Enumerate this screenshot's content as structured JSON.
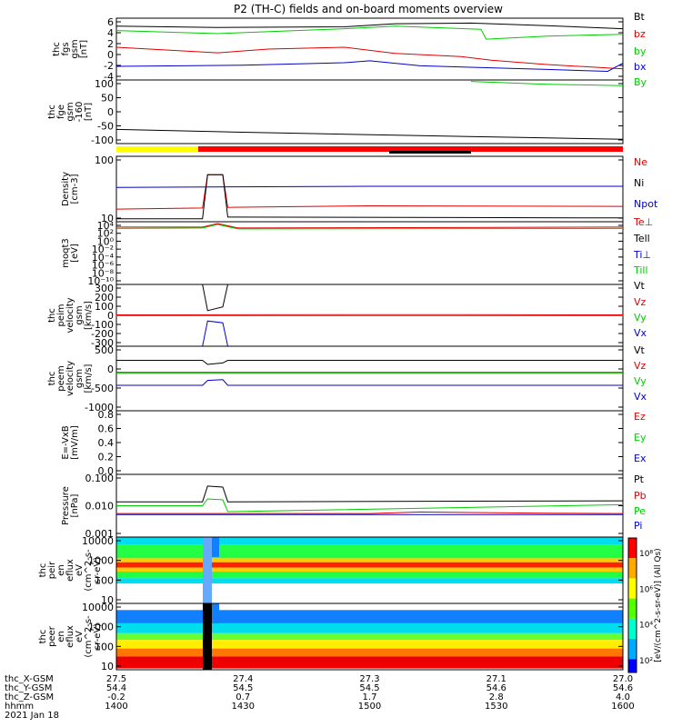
{
  "title": "P2 (TH-C) fields and on-board moments overview",
  "colors": {
    "black": "#000000",
    "red": "#e00000",
    "green": "#00cc00",
    "blue": "#0000cc",
    "yellow": "#ffff00",
    "orbit_red": "#ff0000"
  },
  "chart_data": [
    {
      "type": "line",
      "ylabel": [
        "thc",
        "fgs",
        "gsm",
        "[nT]"
      ],
      "yticks": [
        "6",
        "4",
        "2",
        "0",
        "-2",
        "-4"
      ],
      "ylim": [
        -4,
        6
      ],
      "legend": [
        {
          "label": "Bt",
          "color": "black"
        },
        {
          "label": "bz",
          "color": "red"
        },
        {
          "label": "by",
          "color": "green"
        },
        {
          "label": "bx",
          "color": "blue"
        }
      ],
      "series": [
        {
          "name": "Bt",
          "color": "black",
          "points": [
            [
              0,
              4.7
            ],
            [
              0.2,
              4.5
            ],
            [
              0.45,
              4.6
            ],
            [
              0.55,
              5.1
            ],
            [
              0.7,
              5.2
            ],
            [
              0.85,
              4.8
            ],
            [
              1,
              4.3
            ]
          ]
        },
        {
          "name": "by",
          "color": "green",
          "points": [
            [
              0,
              4.0
            ],
            [
              0.2,
              3.5
            ],
            [
              0.45,
              4.3
            ],
            [
              0.55,
              4.7
            ],
            [
              0.72,
              4.2
            ],
            [
              0.73,
              2.6
            ],
            [
              0.85,
              3.1
            ],
            [
              1,
              3.4
            ]
          ]
        },
        {
          "name": "bz",
          "color": "red",
          "points": [
            [
              0,
              1.3
            ],
            [
              0.2,
              0.4
            ],
            [
              0.3,
              1.0
            ],
            [
              0.45,
              1.3
            ],
            [
              0.55,
              0.3
            ],
            [
              0.68,
              -0.2
            ],
            [
              0.74,
              -0.8
            ],
            [
              0.85,
              -1.5
            ],
            [
              1,
              -2.2
            ]
          ]
        },
        {
          "name": "bx",
          "color": "blue",
          "points": [
            [
              0,
              -1.8
            ],
            [
              0.25,
              -1.6
            ],
            [
              0.45,
              -1.2
            ],
            [
              0.5,
              -0.9
            ],
            [
              0.6,
              -1.7
            ],
            [
              0.85,
              -2.3
            ],
            [
              0.97,
              -2.6
            ],
            [
              1,
              -1.3
            ]
          ]
        }
      ]
    },
    {
      "type": "line",
      "ylabel": [
        "thc",
        "fge",
        "gsm",
        "-160",
        "[nT]"
      ],
      "yticks": [
        "100",
        "50",
        "0",
        "-50",
        "-100"
      ],
      "ylim": [
        -120,
        105
      ],
      "legend": [
        {
          "label": "By",
          "color": "green"
        }
      ],
      "series": [
        {
          "name": "black",
          "color": "black",
          "points": [
            [
              0,
              -70
            ],
            [
              0.2,
              -78
            ],
            [
              0.4,
              -85
            ],
            [
              0.6,
              -92
            ],
            [
              0.8,
              -98
            ],
            [
              1,
              -105
            ]
          ]
        },
        {
          "name": "By",
          "color": "green",
          "points": [
            [
              0.7,
              100
            ],
            [
              0.85,
              90
            ],
            [
              1,
              85
            ]
          ]
        }
      ]
    },
    {
      "type": "line",
      "ylabel": [
        "Density",
        "[cm-3]"
      ],
      "yticks": [
        "100",
        "10"
      ],
      "scale": "log",
      "ylim": [
        1,
        300
      ],
      "legend": [
        {
          "label": "Ne",
          "color": "red"
        },
        {
          "label": "Ni",
          "color": "black"
        },
        {
          "label": "Npot",
          "color": "blue"
        }
      ],
      "series": [
        {
          "name": "Npot",
          "color": "blue",
          "points": [
            [
              0,
              20
            ],
            [
              0.5,
              22
            ],
            [
              1,
              22
            ]
          ]
        },
        {
          "name": "Ne",
          "color": "red",
          "points": [
            [
              0,
              3
            ],
            [
              0.17,
              3.3
            ],
            [
              0.18,
              60
            ],
            [
              0.21,
              60
            ],
            [
              0.22,
              3.5
            ],
            [
              0.5,
              4
            ],
            [
              1,
              3.8
            ]
          ]
        },
        {
          "name": "Ni",
          "color": "black",
          "points": [
            [
              0,
              1.3
            ],
            [
              0.17,
              1.3
            ],
            [
              0.18,
              60
            ],
            [
              0.21,
              60
            ],
            [
              0.22,
              1.5
            ],
            [
              1,
              1.4
            ]
          ]
        }
      ]
    },
    {
      "type": "line",
      "ylabel": [
        "moqt3",
        "[eV]"
      ],
      "yticks": [
        "10⁴",
        "10²",
        "10⁰",
        "10⁻²",
        "10⁻⁴",
        "10⁻⁶",
        "10⁻⁸",
        "10⁻¹⁰"
      ],
      "scale": "log",
      "ylim": [
        -10,
        4
      ],
      "legend": [
        {
          "label": "Te⊥",
          "color": "red"
        },
        {
          "label": "Tell",
          "color": "black"
        },
        {
          "label": "Ti⊥",
          "color": "blue"
        },
        {
          "label": "Till",
          "color": "green"
        }
      ],
      "series": [
        {
          "name": "Ti",
          "color": "green",
          "points": [
            [
              0,
              2.5
            ],
            [
              0.17,
              2.6
            ],
            [
              0.2,
              3.4
            ],
            [
              0.24,
              2.4
            ],
            [
              1,
              2.5
            ]
          ]
        },
        {
          "name": "Te",
          "color": "red",
          "points": [
            [
              0,
              2.8
            ],
            [
              0.17,
              2.8
            ],
            [
              0.2,
              3.6
            ],
            [
              0.24,
              2.6
            ],
            [
              1,
              2.8
            ]
          ]
        }
      ]
    },
    {
      "type": "line",
      "ylabel": [
        "thc",
        "peim",
        "velocity",
        "gsm",
        "[km/s]"
      ],
      "yticks": [
        "300",
        "200",
        "100",
        "0",
        "-100",
        "-200",
        "-300"
      ],
      "ylim": [
        -330,
        330
      ],
      "legend": [
        {
          "label": "Vt",
          "color": "black"
        },
        {
          "label": "Vz",
          "color": "red"
        },
        {
          "label": "Vy",
          "color": "green"
        },
        {
          "label": "Vx",
          "color": "blue"
        }
      ],
      "series": [
        {
          "name": "Vt",
          "color": "black",
          "points": [
            [
              0,
              330
            ],
            [
              0.17,
              330
            ],
            [
              0.18,
              50
            ],
            [
              0.21,
              90
            ],
            [
              0.22,
              330
            ],
            [
              1,
              330
            ]
          ]
        },
        {
          "name": "Vz",
          "color": "red",
          "points": [
            [
              0,
              5
            ],
            [
              0.5,
              8
            ],
            [
              1,
              5
            ]
          ]
        },
        {
          "name": "Vy",
          "color": "green",
          "points": [
            [
              0,
              -5
            ],
            [
              0.5,
              -5
            ],
            [
              1,
              -5
            ]
          ]
        },
        {
          "name": "Vx",
          "color": "blue",
          "points": [
            [
              0,
              -330
            ],
            [
              0.17,
              -330
            ],
            [
              0.18,
              -60
            ],
            [
              0.21,
              -80
            ],
            [
              0.22,
              -330
            ],
            [
              1,
              -330
            ]
          ]
        }
      ]
    },
    {
      "type": "line",
      "ylabel": [
        "thc",
        "peem",
        "velocity",
        "gsm",
        "[km/s]"
      ],
      "yticks": [
        "500",
        "0",
        "-500",
        "-1000"
      ],
      "ylim": [
        -1000,
        700
      ],
      "legend": [
        {
          "label": "Vt",
          "color": "black"
        },
        {
          "label": "Vz",
          "color": "red"
        },
        {
          "label": "Vy",
          "color": "green"
        },
        {
          "label": "Vx",
          "color": "blue"
        }
      ],
      "series": [
        {
          "name": "Vt",
          "color": "black",
          "points": [
            [
              0,
              330
            ],
            [
              0.17,
              330
            ],
            [
              0.18,
              220
            ],
            [
              0.21,
              260
            ],
            [
              0.22,
              330
            ],
            [
              1,
              330
            ]
          ]
        },
        {
          "name": "Vz",
          "color": "red",
          "points": [
            [
              0,
              10
            ],
            [
              1,
              10
            ]
          ]
        },
        {
          "name": "Vy",
          "color": "green",
          "points": [
            [
              0,
              -10
            ],
            [
              1,
              -10
            ]
          ]
        },
        {
          "name": "Vx",
          "color": "blue",
          "points": [
            [
              0,
              -330
            ],
            [
              0.17,
              -330
            ],
            [
              0.18,
              -200
            ],
            [
              0.21,
              -180
            ],
            [
              0.22,
              -330
            ],
            [
              1,
              -330
            ]
          ]
        }
      ]
    },
    {
      "type": "line",
      "ylabel": [
        "E=-VxB",
        "[mV/m]"
      ],
      "yticks": [
        "0.8",
        "0.6",
        "0.4",
        "0.2",
        "0.0"
      ],
      "ylim": [
        0,
        1
      ],
      "legend": [
        {
          "label": "Ez",
          "color": "red"
        },
        {
          "label": "Ey",
          "color": "green"
        },
        {
          "label": "Ex",
          "color": "blue"
        }
      ],
      "series": []
    },
    {
      "type": "line",
      "ylabel": [
        "Pressure",
        "[nPa]"
      ],
      "yticks": [
        "0.100",
        "0.010",
        "0.001"
      ],
      "scale": "log",
      "ylim": [
        -3.2,
        0
      ],
      "legend": [
        {
          "label": "Pt",
          "color": "black"
        },
        {
          "label": "Pb",
          "color": "red"
        },
        {
          "label": "Pe",
          "color": "green"
        },
        {
          "label": "Pi",
          "color": "blue"
        }
      ],
      "series": [
        {
          "name": "Pt",
          "color": "black",
          "points": [
            [
              0,
              -1.4
            ],
            [
              0.17,
              -1.4
            ],
            [
              0.18,
              -0.6
            ],
            [
              0.21,
              -0.65
            ],
            [
              0.22,
              -1.4
            ],
            [
              1,
              -1.35
            ]
          ]
        },
        {
          "name": "Pe",
          "color": "green",
          "points": [
            [
              0,
              -1.6
            ],
            [
              0.17,
              -1.6
            ],
            [
              0.18,
              -1.25
            ],
            [
              0.21,
              -1.3
            ],
            [
              0.22,
              -1.9
            ],
            [
              1,
              -1.55
            ]
          ]
        },
        {
          "name": "Pb",
          "color": "red",
          "points": [
            [
              0,
              -2.0
            ],
            [
              0.2,
              -2.0
            ],
            [
              0.5,
              -2.0
            ],
            [
              0.6,
              -1.92
            ],
            [
              0.85,
              -1.98
            ],
            [
              1,
              -2.0
            ]
          ]
        },
        {
          "name": "Pi",
          "color": "blue",
          "points": [
            [
              0,
              -2.05
            ],
            [
              0.5,
              -2.05
            ],
            [
              1,
              -2.05
            ]
          ]
        }
      ]
    },
    {
      "type": "heatmap",
      "ylabel": [
        "thc",
        "peir",
        "en",
        "eflux",
        "eV",
        "(cm^2-s-",
        "sr-eV)"
      ],
      "yticks": [
        "10000",
        "1000",
        "100",
        "10"
      ]
    },
    {
      "type": "heatmap",
      "ylabel": [
        "thc",
        "peer",
        "en",
        "eflux",
        "eV",
        "(cm^2-s-",
        "sr-eV)"
      ],
      "yticks": [
        "10000",
        "1000",
        "100",
        "10"
      ]
    }
  ],
  "colorbar": {
    "label": "[eV/(cm^2-s-sr-eV)] (All Qs)",
    "ticks": [
      "10⁸",
      "10⁶",
      "10⁴",
      "10²"
    ]
  },
  "xaxis": {
    "rows": [
      {
        "label": "thc_X-GSM",
        "values": [
          "27.5",
          "27.4",
          "27.3",
          "27.1",
          "27.0"
        ]
      },
      {
        "label": "thc_Y-GSM",
        "values": [
          "54.4",
          "54.5",
          "54.5",
          "54.6",
          "54.6"
        ]
      },
      {
        "label": "thc_Z-GSM",
        "values": [
          "-0.2",
          "0.7",
          "1.7",
          "2.8",
          "4.0"
        ]
      },
      {
        "label": "hhmm",
        "values": [
          "1400",
          "1430",
          "1500",
          "1530",
          "1600"
        ]
      }
    ],
    "date": "2021 Jan 18"
  }
}
